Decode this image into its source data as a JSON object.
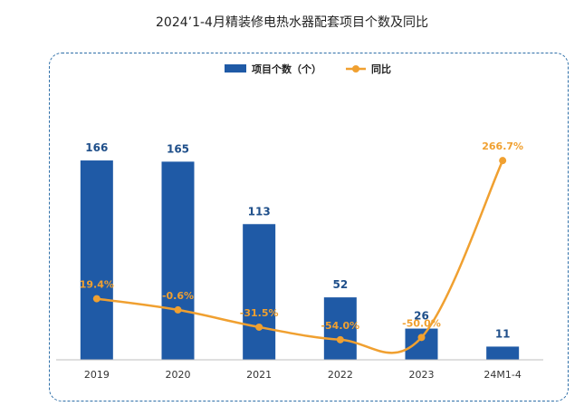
{
  "chart_data": {
    "type": "bar",
    "title": "2024’1-4月精装修电热水器配套项目个数及同比",
    "categories": [
      "2019",
      "2020",
      "2021",
      "2022",
      "2023",
      "24M1-4"
    ],
    "series": [
      {
        "name": "项目个数（个）",
        "kind": "bar",
        "color": "#1f5aa6",
        "values": [
          166,
          165,
          113,
          52,
          26,
          11
        ]
      },
      {
        "name": "同比",
        "kind": "line",
        "color": "#f0a030",
        "values": [
          19.4,
          -0.6,
          -31.5,
          -54.0,
          -50.0,
          266.7
        ],
        "labels": [
          "19.4%",
          "-0.6%",
          "-31.5%",
          "-54.0%",
          "-50.0%",
          "266.7%"
        ]
      }
    ],
    "bar_axis_range": [
      0,
      200
    ],
    "line_axis_range": [
      -90,
      340
    ],
    "grid": false,
    "legend_position": "top-center"
  }
}
